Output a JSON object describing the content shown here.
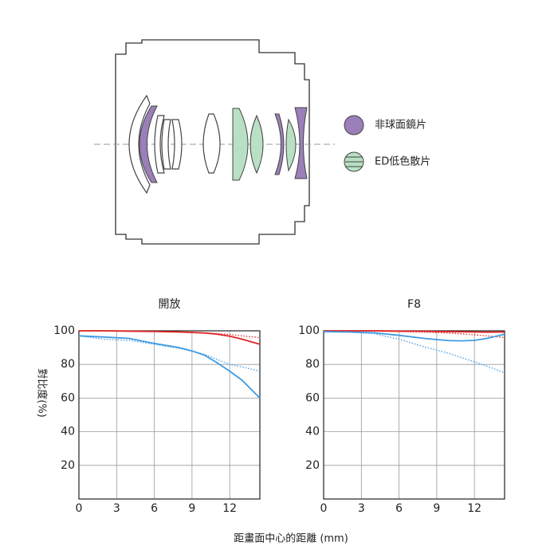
{
  "legend": [
    {
      "label": "非球面鏡片",
      "color": "#9b7fb8"
    },
    {
      "label": "ED低色散片",
      "color": "#b9e0c4"
    }
  ],
  "y_label": "對比度(%)",
  "x_label": "距畫面中心的距離 (mm)",
  "chart_data": [
    {
      "type": "line",
      "title": "開放",
      "x": [
        0,
        2,
        4,
        6,
        8,
        9,
        10,
        11,
        12,
        13,
        14.4
      ],
      "xlim": [
        0,
        14.4
      ],
      "xticks": [
        0,
        3,
        6,
        9,
        12
      ],
      "ylim": [
        0,
        100
      ],
      "yticks": [
        20,
        40,
        60,
        80,
        100
      ],
      "grid": true,
      "series": [
        {
          "color": "#e02424",
          "style": "solid",
          "values": [
            100,
            100,
            99.8,
            99.6,
            99.3,
            99,
            98.7,
            98,
            96.8,
            95,
            92
          ]
        },
        {
          "color": "#e02424",
          "style": "dotted",
          "values": [
            100,
            100,
            99.8,
            99.6,
            99.3,
            99,
            98.8,
            98.4,
            97.8,
            97,
            96
          ]
        },
        {
          "color": "#3f9be3",
          "style": "solid",
          "values": [
            97,
            96.3,
            95.5,
            92.5,
            90,
            88,
            85.5,
            81,
            76,
            70.5,
            60
          ]
        },
        {
          "color": "#3f9be3",
          "style": "dotted",
          "values": [
            97,
            95,
            94.3,
            92,
            89.5,
            88,
            86,
            83,
            80,
            78.5,
            76
          ]
        }
      ]
    },
    {
      "type": "line",
      "title": "F8",
      "x": [
        0,
        2,
        4,
        6,
        8,
        9,
        10,
        11,
        12,
        13,
        14.4
      ],
      "xlim": [
        0,
        14.4
      ],
      "xticks": [
        0,
        3,
        6,
        9,
        12
      ],
      "ylim": [
        0,
        100
      ],
      "yticks": [
        20,
        40,
        60,
        80,
        100
      ],
      "grid": true,
      "series": [
        {
          "color": "#e02424",
          "style": "solid",
          "values": [
            100,
            100,
            100,
            99.8,
            99.7,
            99.6,
            99.5,
            99.4,
            99.3,
            99.2,
            99.3
          ]
        },
        {
          "color": "#e02424",
          "style": "dotted",
          "values": [
            100,
            100,
            99.8,
            99.6,
            99.2,
            99,
            98.6,
            98.2,
            97.6,
            97,
            96
          ]
        },
        {
          "color": "#3f9be3",
          "style": "solid",
          "values": [
            99.5,
            99.3,
            98.8,
            97.3,
            95.5,
            94.8,
            94.2,
            94,
            94.3,
            95.5,
            98
          ]
        },
        {
          "color": "#3f9be3",
          "style": "dotted",
          "values": [
            99.5,
            99.2,
            98.3,
            95,
            90.5,
            88.5,
            86.5,
            84,
            81.5,
            79,
            75
          ]
        }
      ]
    }
  ]
}
